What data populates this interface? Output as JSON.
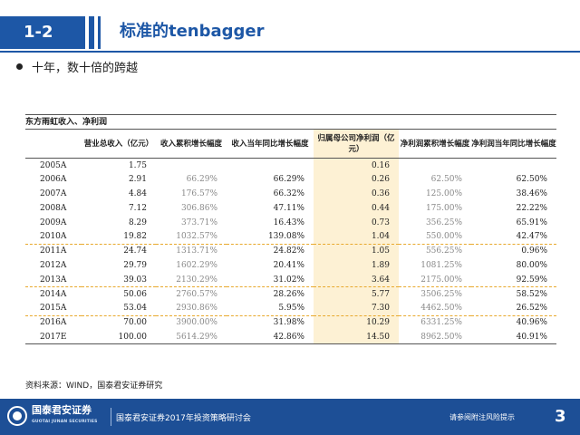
{
  "header": {
    "slide_no": "1-2",
    "title": "标准的tenbagger"
  },
  "bullet": "十年，数十倍的跨越",
  "table": {
    "caption": "东方雨虹收入、净利润",
    "columns": [
      "",
      "营业总收入（亿元）",
      "收入累积增长幅度",
      "收入当年同比增长幅度",
      "归属母公司净利润（亿元）",
      "净利润累积增长幅度",
      "净利润当年同比增长幅度"
    ],
    "rows": [
      [
        "2005A",
        "1.75",
        "",
        "",
        "0.16",
        "",
        ""
      ],
      [
        "2006A",
        "2.91",
        "66.29%",
        "66.29%",
        "0.26",
        "62.50%",
        "62.50%"
      ],
      [
        "2007A",
        "4.84",
        "176.57%",
        "66.32%",
        "0.36",
        "125.00%",
        "38.46%"
      ],
      [
        "2008A",
        "7.12",
        "306.86%",
        "47.11%",
        "0.44",
        "175.00%",
        "22.22%"
      ],
      [
        "2009A",
        "8.29",
        "373.71%",
        "16.43%",
        "0.73",
        "356.25%",
        "65.91%"
      ],
      [
        "2010A",
        "19.82",
        "1032.57%",
        "139.08%",
        "1.04",
        "550.00%",
        "42.47%"
      ],
      [
        "2011A",
        "24.74",
        "1313.71%",
        "24.82%",
        "1.05",
        "556.25%",
        "0.96%"
      ],
      [
        "2012A",
        "29.79",
        "1602.29%",
        "20.41%",
        "1.89",
        "1081.25%",
        "80.00%"
      ],
      [
        "2013A",
        "39.03",
        "2130.29%",
        "31.02%",
        "3.64",
        "2175.00%",
        "92.59%"
      ],
      [
        "2014A",
        "50.06",
        "2760.57%",
        "28.26%",
        "5.77",
        "3506.25%",
        "58.52%"
      ],
      [
        "2015A",
        "53.04",
        "2930.86%",
        "5.95%",
        "7.30",
        "4462.50%",
        "26.52%"
      ],
      [
        "2016A",
        "70.00",
        "3900.00%",
        "31.98%",
        "10.29",
        "6331.25%",
        "40.96%"
      ],
      [
        "2017E",
        "100.00",
        "5614.29%",
        "42.86%",
        "14.50",
        "8962.50%",
        "40.91%"
      ]
    ]
  },
  "source": "资料来源：WIND，国泰君安证券研究",
  "footer": {
    "logo_name": "国泰君安证券",
    "logo_sub": "GUOTAI JUNAN SECURITIES",
    "event": "国泰君安证券2017年投资策略研讨会",
    "disclaimer": "请参阅附注风险提示",
    "page": "3"
  },
  "colors": {
    "brand": "#1d57a6",
    "highlight": "#fdf1d4",
    "divider": "#e8a92d"
  }
}
